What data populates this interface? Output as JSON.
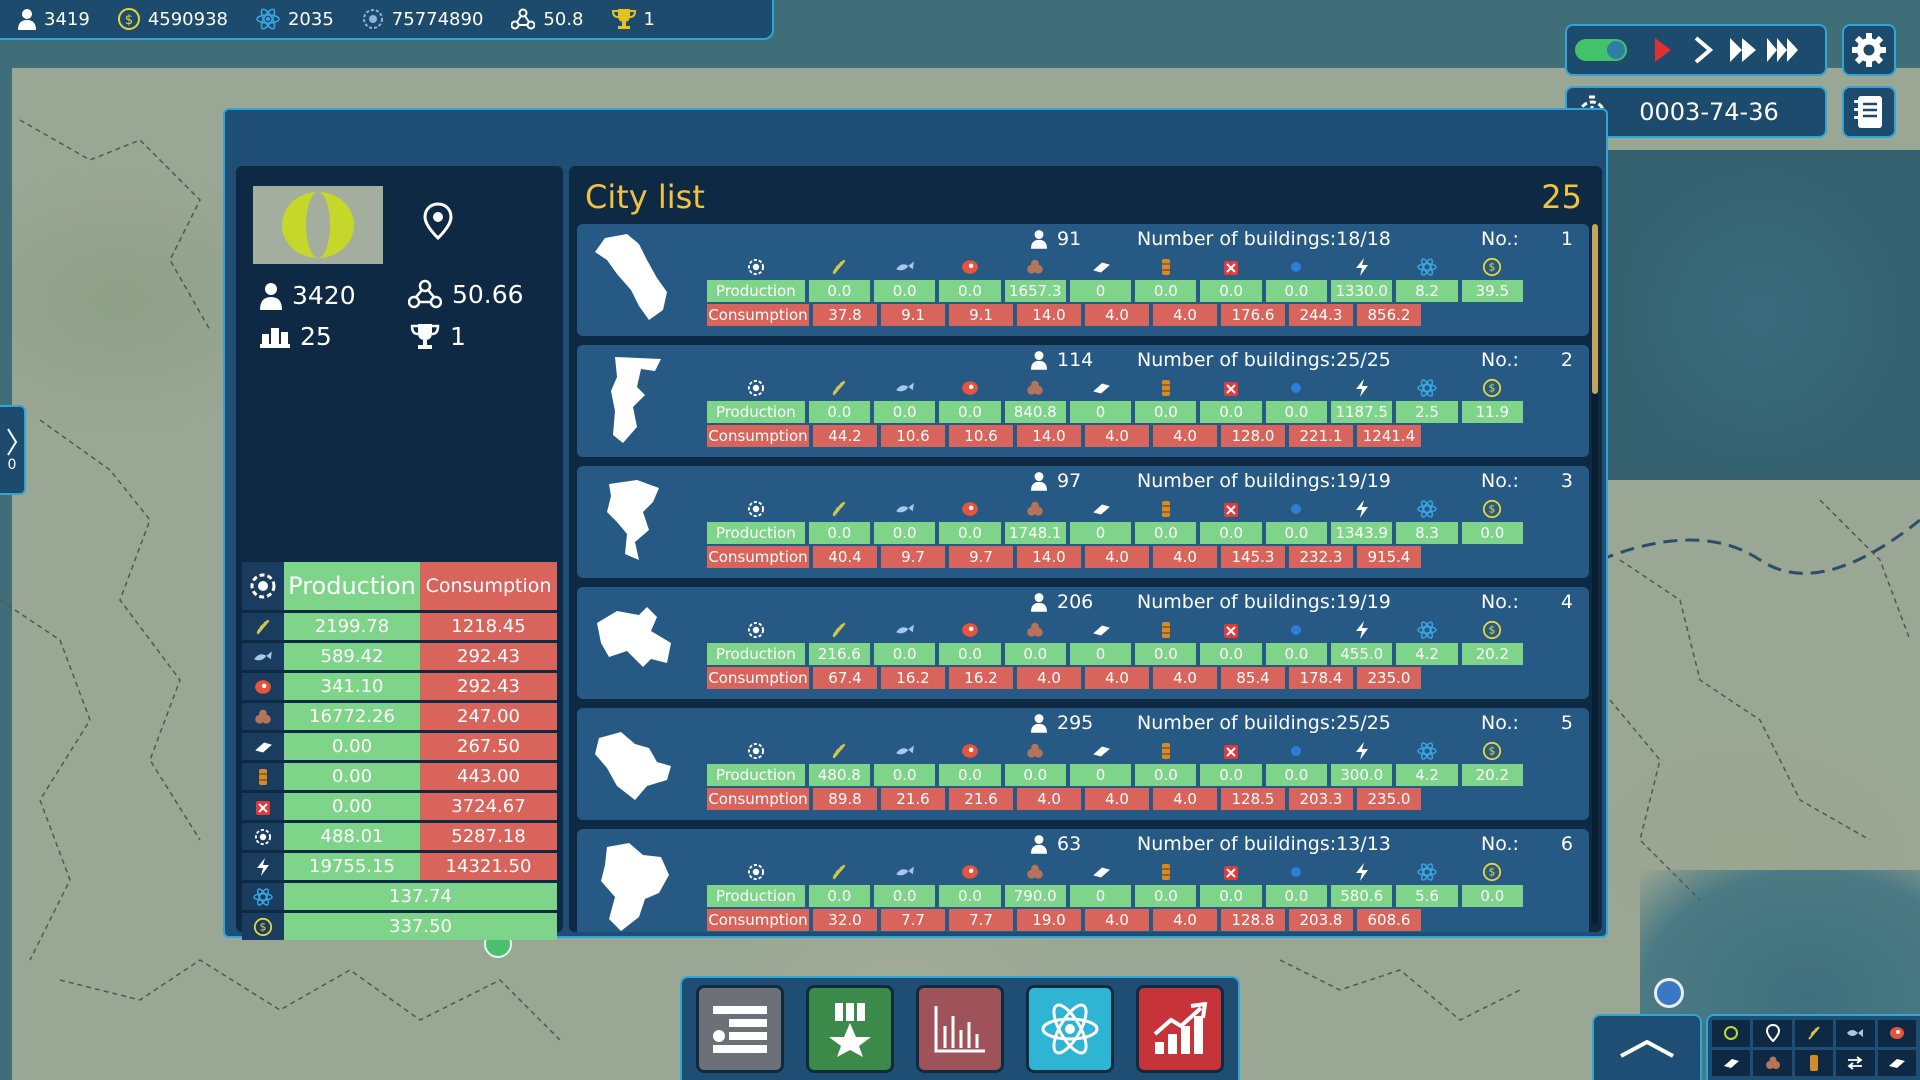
{
  "topbar": {
    "population": "3419",
    "money": "4590938",
    "research": "2035",
    "score": "75774890",
    "influence": "50.8",
    "trophies": "1"
  },
  "controls": {
    "date": "0003-74-36",
    "auto_toggle_on": true
  },
  "left_tab": {
    "count": "0"
  },
  "country": {
    "population": "3420",
    "influence": "50.66",
    "cities": "25",
    "trophies": "1"
  },
  "totals": {
    "production_label": "Production",
    "consumption_label": "Consumption",
    "rows": [
      {
        "icon": "wheat-icon",
        "production": "2199.78",
        "consumption": "1218.45"
      },
      {
        "icon": "fish-icon",
        "production": "589.42",
        "consumption": "292.43"
      },
      {
        "icon": "meat-icon",
        "production": "341.10",
        "consumption": "292.43"
      },
      {
        "icon": "ore-icon",
        "production": "16772.26",
        "consumption": "247.00"
      },
      {
        "icon": "steel-icon",
        "production": "0.00",
        "consumption": "267.50"
      },
      {
        "icon": "oil-icon",
        "production": "0.00",
        "consumption": "443.00"
      },
      {
        "icon": "fuel-can-icon",
        "production": "0.00",
        "consumption": "3724.67"
      },
      {
        "icon": "goods-icon",
        "production": "488.01",
        "consumption": "5287.18"
      },
      {
        "icon": "power-icon",
        "production": "19755.15",
        "consumption": "14321.50"
      }
    ],
    "research_total": "137.74",
    "money_total": "337.50"
  },
  "city_list": {
    "title": "City list",
    "count": "25",
    "production_label": "Production",
    "consumption_label": "Consumption",
    "buildings_prefix": "Number of buildings:",
    "no_label": "No.:",
    "cities": [
      {
        "pop": "91",
        "buildings": "18/18",
        "no": "1",
        "prod": [
          "0.0",
          "0.0",
          "0.0",
          "1657.3",
          "0",
          "0.0",
          "0.0",
          "0.0",
          "1330.0",
          "8.2",
          "39.5"
        ],
        "cons": [
          "37.8",
          "9.1",
          "9.1",
          "14.0",
          "4.0",
          "4.0",
          "176.6",
          "244.3",
          "856.2"
        ]
      },
      {
        "pop": "114",
        "buildings": "25/25",
        "no": "2",
        "prod": [
          "0.0",
          "0.0",
          "0.0",
          "840.8",
          "0",
          "0.0",
          "0.0",
          "0.0",
          "1187.5",
          "2.5",
          "11.9"
        ],
        "cons": [
          "44.2",
          "10.6",
          "10.6",
          "14.0",
          "4.0",
          "4.0",
          "128.0",
          "221.1",
          "1241.4"
        ]
      },
      {
        "pop": "97",
        "buildings": "19/19",
        "no": "3",
        "prod": [
          "0.0",
          "0.0",
          "0.0",
          "1748.1",
          "0",
          "0.0",
          "0.0",
          "0.0",
          "1343.9",
          "8.3",
          "0.0"
        ],
        "cons": [
          "40.4",
          "9.7",
          "9.7",
          "14.0",
          "4.0",
          "4.0",
          "145.3",
          "232.3",
          "915.4"
        ]
      },
      {
        "pop": "206",
        "buildings": "19/19",
        "no": "4",
        "prod": [
          "216.6",
          "0.0",
          "0.0",
          "0.0",
          "0",
          "0.0",
          "0.0",
          "0.0",
          "455.0",
          "4.2",
          "20.2"
        ],
        "cons": [
          "67.4",
          "16.2",
          "16.2",
          "4.0",
          "4.0",
          "4.0",
          "85.4",
          "178.4",
          "235.0"
        ]
      },
      {
        "pop": "295",
        "buildings": "25/25",
        "no": "5",
        "prod": [
          "480.8",
          "0.0",
          "0.0",
          "0.0",
          "0",
          "0.0",
          "0.0",
          "0.0",
          "300.0",
          "4.2",
          "20.2"
        ],
        "cons": [
          "89.8",
          "21.6",
          "21.6",
          "4.0",
          "4.0",
          "4.0",
          "128.5",
          "203.3",
          "235.0"
        ]
      },
      {
        "pop": "63",
        "buildings": "13/13",
        "no": "6",
        "prod": [
          "0.0",
          "0.0",
          "0.0",
          "790.0",
          "0",
          "0.0",
          "0.0",
          "0.0",
          "580.6",
          "5.6",
          "0.0"
        ],
        "cons": [
          "32.0",
          "7.7",
          "7.7",
          "19.0",
          "4.0",
          "4.0",
          "128.8",
          "203.8",
          "608.6"
        ]
      }
    ]
  },
  "colors": {
    "panel": "#1e4e74",
    "dark": "#0e2944",
    "production": "#7ed489",
    "consumption": "#d9645c",
    "title_gold": "#f2c23f",
    "border": "#2fa6d6"
  }
}
